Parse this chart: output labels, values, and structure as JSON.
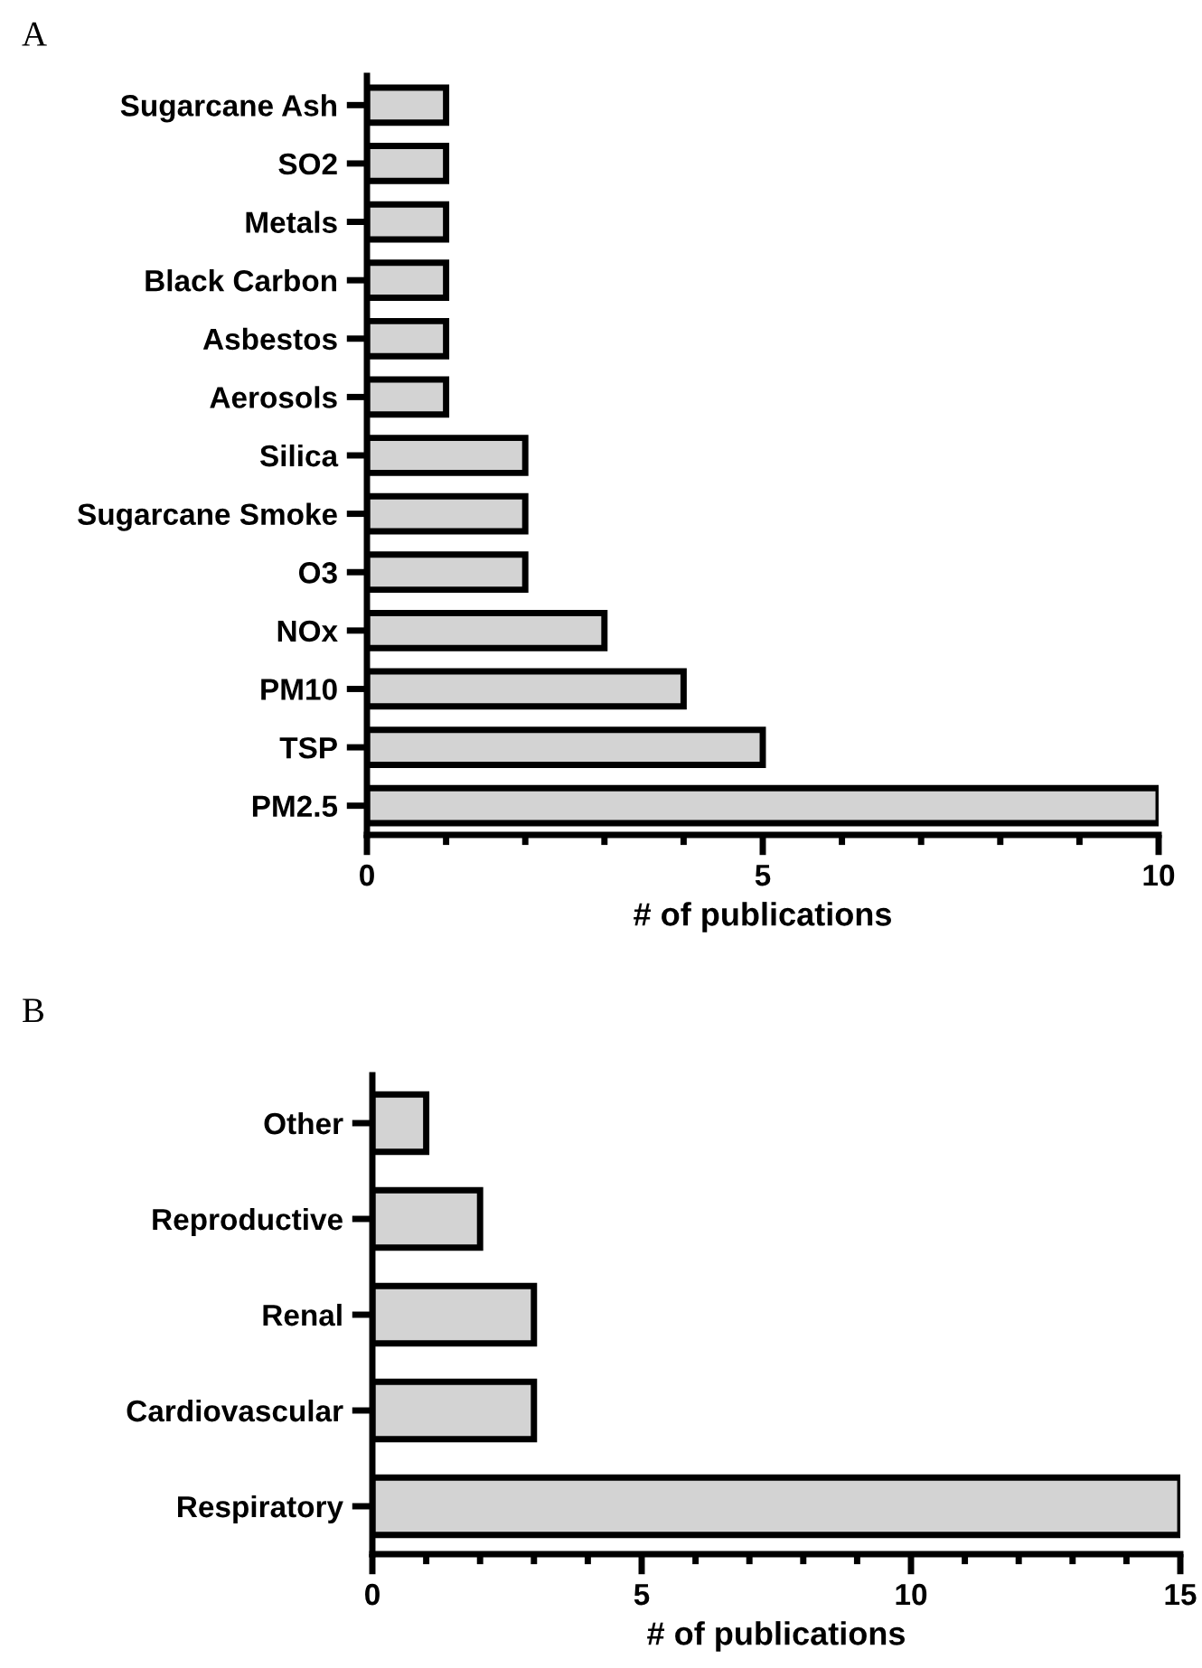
{
  "chart_data": [
    {
      "type": "bar",
      "orientation": "horizontal",
      "title": "A",
      "xlabel": "# of publications",
      "categories": [
        "Sugarcane Ash",
        "SO2",
        "Metals",
        "Black Carbon",
        "Asbestos",
        "Aerosols",
        "Silica",
        "Sugarcane Smoke",
        "O3",
        "NOx",
        "PM10",
        "TSP",
        "PM2.5"
      ],
      "values": [
        1,
        1,
        1,
        1,
        1,
        1,
        2,
        2,
        2,
        3,
        4,
        5,
        10
      ],
      "color": "#d3d3d3",
      "xlim": [
        0,
        10
      ],
      "xticks": [
        0,
        {
          "value": 1,
          "label": null
        },
        {
          "value": 2,
          "label": null
        },
        {
          "value": 3,
          "label": null
        },
        {
          "value": 4,
          "label": null
        },
        5,
        {
          "value": 6,
          "label": null
        },
        {
          "value": 7,
          "label": null
        },
        {
          "value": 8,
          "label": null
        },
        {
          "value": 9,
          "label": null
        },
        10
      ],
      "grid": false,
      "legend": false
    },
    {
      "type": "bar",
      "orientation": "horizontal",
      "title": "B",
      "xlabel": "# of publications",
      "categories": [
        "Other",
        "Reproductive",
        "Renal",
        "Cardiovascular",
        "Respiratory"
      ],
      "values": [
        1,
        2,
        3,
        3,
        15
      ],
      "color": "#d3d3d3",
      "xlim": [
        0,
        15
      ],
      "xticks": [
        0,
        {
          "value": 1,
          "label": null
        },
        {
          "value": 2,
          "label": null
        },
        {
          "value": 3,
          "label": null
        },
        {
          "value": 4,
          "label": null
        },
        5,
        {
          "value": 6,
          "label": null
        },
        {
          "value": 7,
          "label": null
        },
        {
          "value": 8,
          "label": null
        },
        {
          "value": 9,
          "label": null
        },
        10,
        {
          "value": 11,
          "label": null
        },
        {
          "value": 12,
          "label": null
        },
        {
          "value": 13,
          "label": null
        },
        {
          "value": 14,
          "label": null
        },
        15
      ],
      "grid": false,
      "legend": false
    }
  ]
}
